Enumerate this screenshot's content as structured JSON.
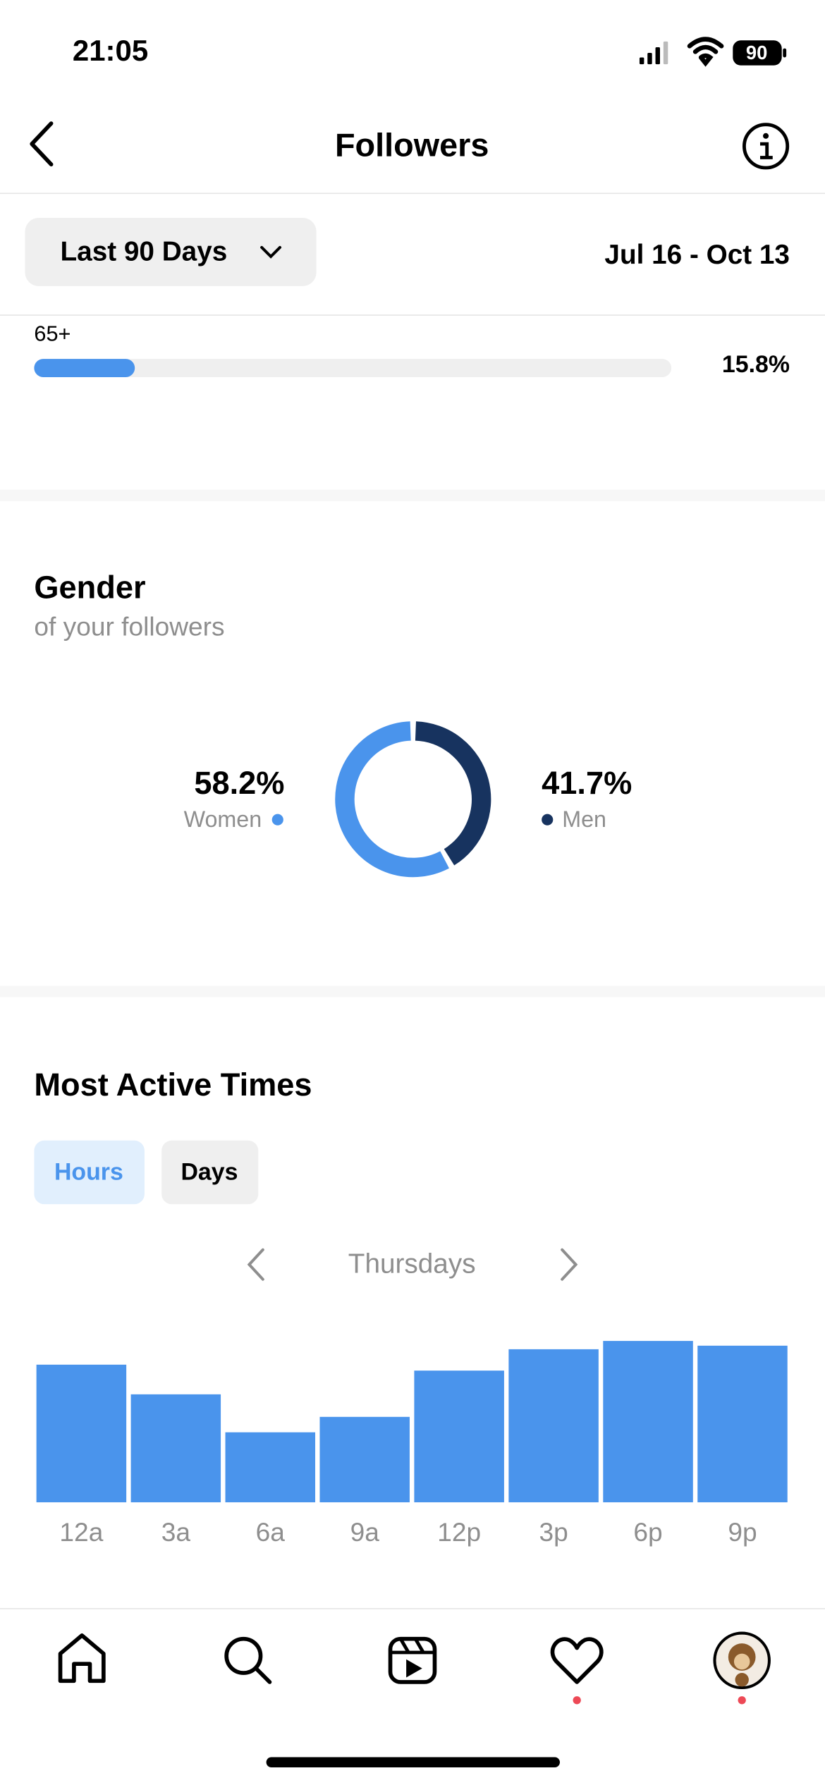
{
  "status_bar": {
    "time": "21:05",
    "battery": "90"
  },
  "header": {
    "title": "Followers"
  },
  "filter": {
    "range": "Last 90 Days",
    "dates": "Jul 16 - Oct 13"
  },
  "age": {
    "label": "65+",
    "value": 15.8,
    "value_label": "15.8%",
    "xlim": [
      0,
      100
    ],
    "color": "#4a94ec"
  },
  "gender": {
    "title": "Gender",
    "subtitle": "of your followers",
    "chart": {
      "type": "pie",
      "categories": [
        "Women",
        "Men"
      ],
      "values": [
        58.2,
        41.7
      ],
      "value_labels": [
        "58.2%",
        "41.7%"
      ],
      "colors": [
        "#4a94ec",
        "#17335f"
      ]
    }
  },
  "active_times": {
    "title": "Most Active Times",
    "tabs": [
      "Hours",
      "Days"
    ],
    "day": "Thursdays",
    "chart": {
      "type": "bar",
      "categories": [
        "12a",
        "3a",
        "6a",
        "9a",
        "12p",
        "3p",
        "6p",
        "9p"
      ],
      "values": [
        116,
        91,
        59,
        72,
        111,
        129,
        136,
        132
      ],
      "ylim": [
        0,
        140
      ],
      "color": "#4a94ec"
    }
  }
}
